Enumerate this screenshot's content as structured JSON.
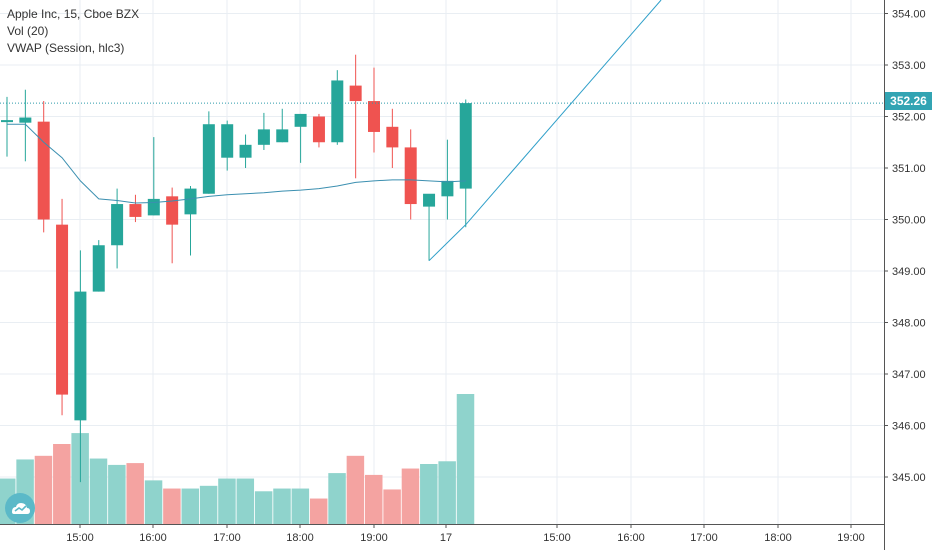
{
  "legend": {
    "line1": "Apple Inc, 15, Cboe BZX",
    "line2": "Vol (20)",
    "line3": "VWAP (Session, hlc3)"
  },
  "last_price_label": "352.26",
  "colors": {
    "up": "#26a69a",
    "down": "#ef5350",
    "vol_up": "#8fd3cc",
    "vol_down": "#f4a3a1",
    "vwap": "#3b8fb0",
    "trendline": "#2f9fc9",
    "price_line": "#2c9bab",
    "grid": "#e9eef3"
  },
  "icons": {
    "logo": "tradingview-cloud-icon"
  },
  "chart_data": {
    "type": "candlestick",
    "title": "Apple Inc, 15, Cboe BZX",
    "x_tick_labels": [
      "15:00",
      "16:00",
      "17:00",
      "18:00",
      "19:00",
      "17",
      "15:00",
      "16:00",
      "17:00",
      "18:00",
      "19:00"
    ],
    "y_tick_labels": [
      "345.00",
      "346.00",
      "347.00",
      "348.00",
      "349.00",
      "350.00",
      "351.00",
      "352.00",
      "353.00",
      "354.00"
    ],
    "ylim": [
      344.1,
      354.2
    ],
    "last_price": 352.26,
    "grid": true,
    "candles": [
      {
        "o": 351.93,
        "h": 352.38,
        "l": 351.22,
        "c": 351.93,
        "v": 5
      },
      {
        "o": 351.88,
        "h": 352.52,
        "l": 351.13,
        "c": 351.98,
        "v": 7.1
      },
      {
        "o": 351.9,
        "h": 352.3,
        "l": 349.75,
        "c": 350.0,
        "v": 7.5
      },
      {
        "o": 349.9,
        "h": 350.4,
        "l": 346.2,
        "c": 346.6,
        "v": 8.8
      },
      {
        "o": 346.1,
        "h": 349.4,
        "l": 344.9,
        "c": 348.6,
        "v": 10
      },
      {
        "o": 348.6,
        "h": 349.6,
        "l": 348.6,
        "c": 349.5,
        "v": 7.2
      },
      {
        "o": 349.5,
        "h": 350.6,
        "l": 349.05,
        "c": 350.3,
        "v": 6.5
      },
      {
        "o": 350.3,
        "h": 350.48,
        "l": 349.95,
        "c": 350.05,
        "v": 6.7
      },
      {
        "o": 350.08,
        "h": 351.6,
        "l": 350.08,
        "c": 350.4,
        "v": 4.8
      },
      {
        "o": 350.45,
        "h": 350.62,
        "l": 349.15,
        "c": 349.9,
        "v": 3.9
      },
      {
        "o": 350.1,
        "h": 350.65,
        "l": 349.3,
        "c": 350.6,
        "v": 3.9
      },
      {
        "o": 350.5,
        "h": 352.1,
        "l": 350.5,
        "c": 351.85,
        "v": 4.2
      },
      {
        "o": 351.2,
        "h": 351.92,
        "l": 350.95,
        "c": 351.85,
        "v": 5
      },
      {
        "o": 351.2,
        "h": 351.65,
        "l": 351.0,
        "c": 351.45,
        "v": 5
      },
      {
        "o": 351.45,
        "h": 352.07,
        "l": 351.35,
        "c": 351.75,
        "v": 3.6
      },
      {
        "o": 351.5,
        "h": 352.15,
        "l": 351.5,
        "c": 351.75,
        "v": 3.9
      },
      {
        "o": 351.8,
        "h": 352.05,
        "l": 351.1,
        "c": 352.05,
        "v": 3.9
      },
      {
        "o": 352.0,
        "h": 352.05,
        "l": 351.4,
        "c": 351.5,
        "v": 2.8
      },
      {
        "o": 351.5,
        "h": 352.9,
        "l": 351.45,
        "c": 352.7,
        "v": 5.6
      },
      {
        "o": 352.6,
        "h": 353.2,
        "l": 350.8,
        "c": 352.3,
        "v": 7.5
      },
      {
        "o": 352.3,
        "h": 352.95,
        "l": 351.3,
        "c": 351.7,
        "v": 5.4
      },
      {
        "o": 351.8,
        "h": 352.15,
        "l": 351.0,
        "c": 351.4,
        "v": 3.8
      },
      {
        "o": 351.4,
        "h": 351.75,
        "l": 350.0,
        "c": 350.3,
        "v": 6.1
      },
      {
        "o": 350.25,
        "h": 350.48,
        "l": 349.2,
        "c": 350.5,
        "v": 6.6
      },
      {
        "o": 350.45,
        "h": 351.55,
        "l": 350.0,
        "c": 350.75,
        "v": 6.9
      },
      {
        "o": 350.6,
        "h": 352.33,
        "l": 349.85,
        "c": 352.26,
        "v": 14.3
      }
    ],
    "vwap": [
      351.85,
      351.85,
      351.5,
      351.2,
      350.75,
      350.4,
      350.37,
      350.32,
      350.33,
      350.36,
      350.4,
      350.45,
      350.48,
      350.5,
      350.52,
      350.55,
      350.57,
      350.6,
      350.65,
      350.72,
      350.75,
      350.77,
      350.77,
      350.75,
      350.73,
      350.75
    ],
    "trendline": {
      "from": {
        "index": 23,
        "price": 349.2
      },
      "via": {
        "index": 25,
        "price": 349.9
      }
    }
  }
}
